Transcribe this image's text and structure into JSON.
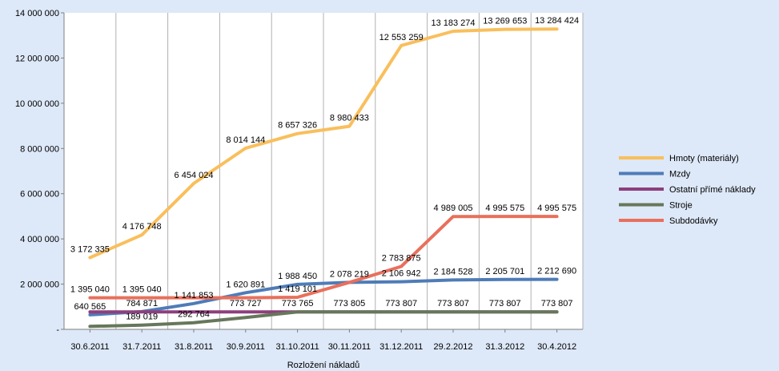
{
  "chart_data": {
    "type": "line",
    "xlabel": "Rozložení nákladů",
    "ylabel": "",
    "ylim": [
      0,
      14000000
    ],
    "yticks": [
      "-",
      "2 000 000",
      "4 000 000",
      "6 000 000",
      "8 000 000",
      "10 000 000",
      "12 000 000",
      "14 000 000"
    ],
    "grid": "vertical",
    "legend_position": "right",
    "categories": [
      "30.6.2011",
      "31.7.2011",
      "31.8.2011",
      "30.9.2011",
      "31.10.2011",
      "30.11.2011",
      "31.12.2011",
      "29.2.2012",
      "31.3.2012",
      "30.4.2012"
    ],
    "series": [
      {
        "name": "Hmoty (materiály)",
        "color": "#f9bf5c",
        "values": [
          3172335,
          4176748,
          6454024,
          8014144,
          8657326,
          8980433,
          12553259,
          13183274,
          13269653,
          13284424
        ],
        "labels": [
          "3 172 335",
          "4 176 748",
          "6 454 024",
          "8 014 144",
          "8 657 326",
          "8 980 433",
          "12 553 259",
          "13 183 274",
          "13 269 653",
          "13 284 424"
        ]
      },
      {
        "name": "Mzdy",
        "color": "#4f7cb8",
        "values": [
          640565,
          784871,
          1141853,
          1620891,
          1988450,
          2078219,
          2106942,
          2184528,
          2205701,
          2212690
        ],
        "labels": [
          "640 565",
          "784 871",
          "1 141 853",
          "1 620 891",
          "1 988 450",
          "2 078 219",
          "2 106 942",
          "2 184 528",
          "2 205 701",
          "2 212 690"
        ]
      },
      {
        "name": "Ostatní přímé náklady",
        "color": "#8d3f7c",
        "values": [
          773727,
          773727,
          773727,
          773727,
          773765,
          773805,
          773807,
          773807,
          773807,
          773807
        ],
        "labels": [
          "",
          "",
          "",
          "773 727",
          "773 765",
          "773 805",
          "773 807",
          "773 807",
          "773 807",
          "773 807"
        ]
      },
      {
        "name": "Stroje",
        "color": "#66775b",
        "values": [
          130000,
          189019,
          292764,
          520000,
          773765,
          773805,
          773807,
          773807,
          773807,
          773807
        ],
        "labels": [
          "",
          "189 019",
          "292 764",
          "",
          "",
          "",
          "",
          "",
          "",
          ""
        ]
      },
      {
        "name": "Subdodávky",
        "color": "#e8705c",
        "values": [
          1395040,
          1395040,
          1395040,
          1395040,
          1419101,
          2078219,
          2783875,
          4989005,
          4995575,
          4995575
        ],
        "labels": [
          "1 395 040",
          "1 395 040",
          "",
          "",
          "1 419 101",
          "",
          "2 783 875",
          "4 989 005",
          "4 995 575",
          "4 995 575"
        ]
      }
    ]
  }
}
